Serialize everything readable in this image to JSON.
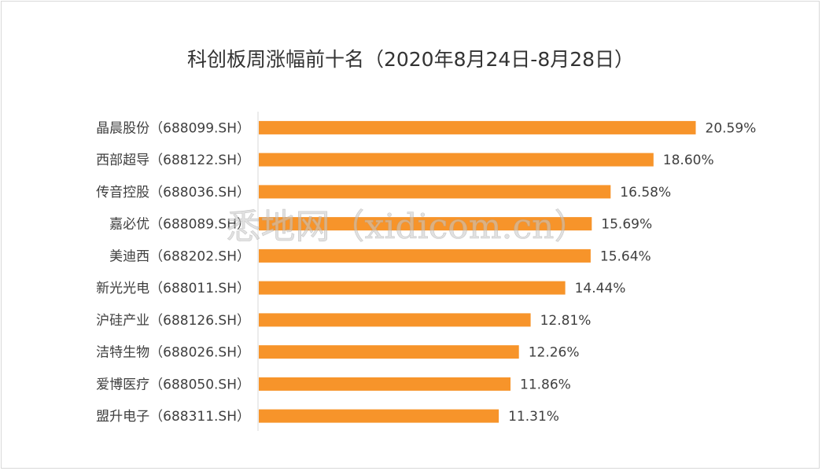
{
  "chart_data": {
    "type": "bar",
    "orientation": "horizontal",
    "title": "科创板周涨幅前十名（2020年8月24日-8月28日）",
    "categories": [
      "晶晨股份（688099.SH）",
      "西部超导（688122.SH）",
      "传音控股（688036.SH）",
      "嘉必优（688089.SH）",
      "美迪西（688202.SH）",
      "新光光电（688011.SH）",
      "沪硅产业（688126.SH）",
      "洁特生物（688026.SH）",
      "爱博医疗（688050.SH）",
      "盟升电子（688311.SH）"
    ],
    "values": [
      20.59,
      18.6,
      16.58,
      15.69,
      15.64,
      14.44,
      12.81,
      12.26,
      11.86,
      11.31
    ],
    "value_labels": [
      "20.59%",
      "18.60%",
      "16.58%",
      "15.69%",
      "15.64%",
      "14.44%",
      "12.81%",
      "12.26%",
      "11.86%",
      "11.31%"
    ],
    "xlim": [
      0,
      22
    ],
    "grid": false,
    "legend": "none",
    "bar_color": "#F7942A"
  },
  "watermark": "悉地网（xidicom.cn）"
}
